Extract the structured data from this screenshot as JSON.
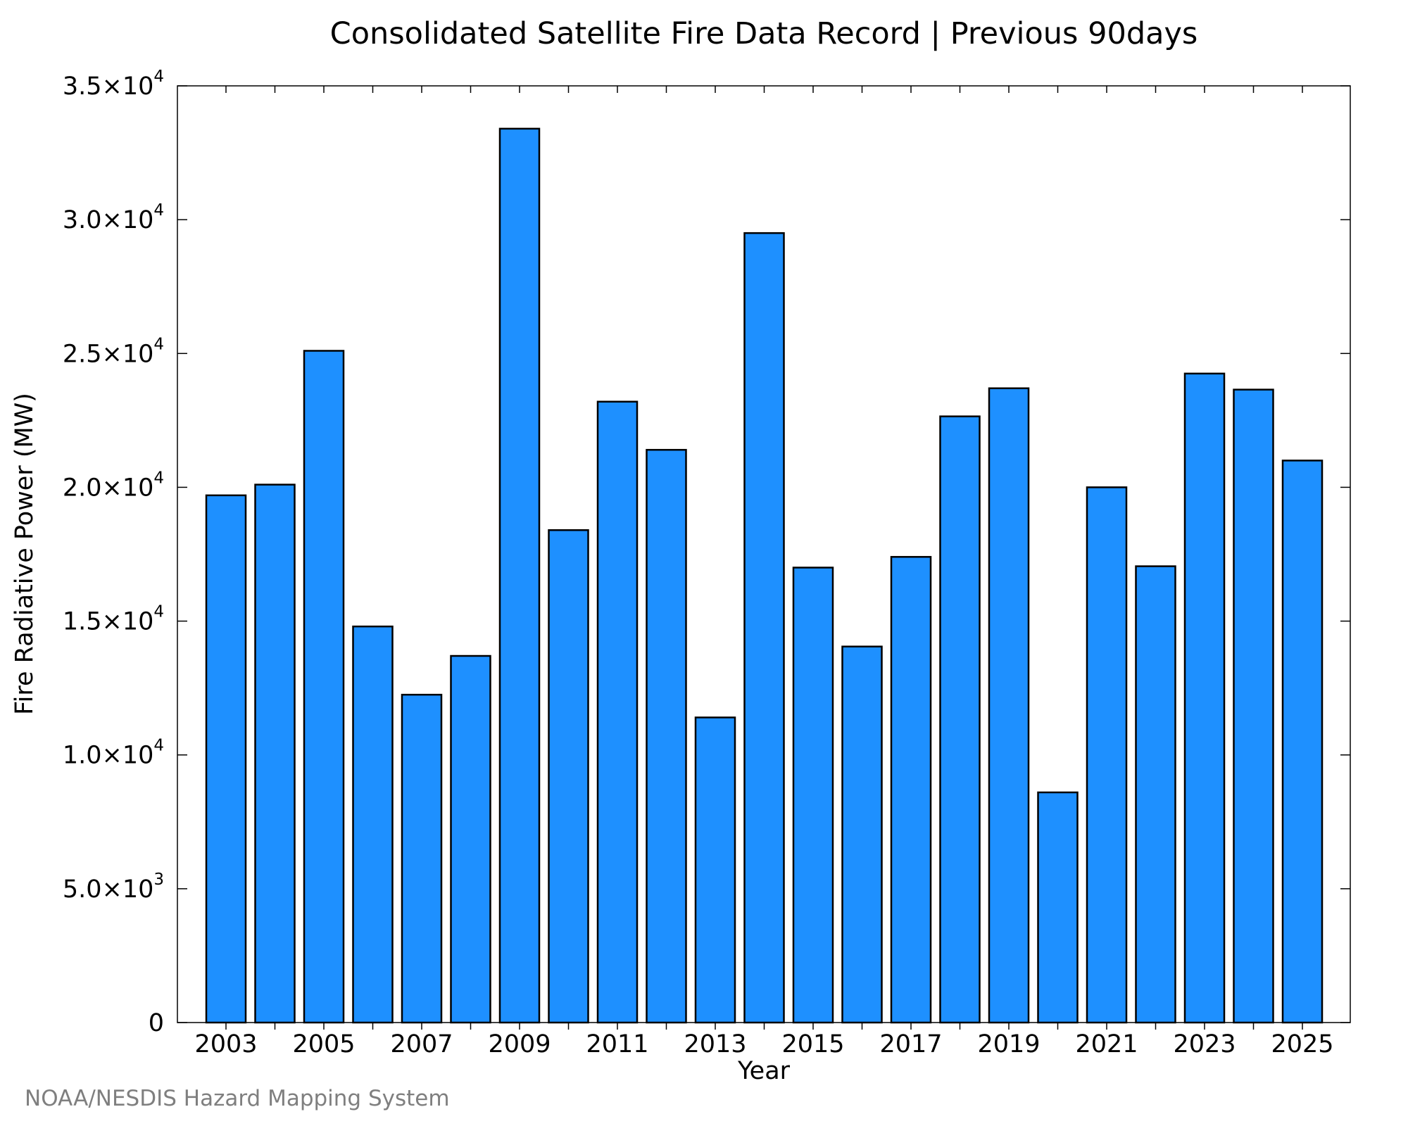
{
  "chart_data": {
    "type": "bar",
    "title": "Consolidated Satellite Fire Data Record | Previous 90days",
    "xlabel": "Year",
    "ylabel": "Fire Radiative Power (MW)",
    "categories": [
      "2003",
      "2004",
      "2005",
      "2006",
      "2007",
      "2008",
      "2009",
      "2010",
      "2011",
      "2012",
      "2013",
      "2014",
      "2015",
      "2016",
      "2017",
      "2018",
      "2019",
      "2020",
      "2021",
      "2022",
      "2023",
      "2024",
      "2025"
    ],
    "values": [
      19700,
      20100,
      25100,
      14800,
      12250,
      13700,
      33400,
      18400,
      23200,
      21400,
      11400,
      29500,
      17000,
      14050,
      17400,
      22650,
      23700,
      8600,
      20000,
      17050,
      24250,
      23650,
      21000
    ],
    "x_tick_labels": [
      "2003",
      "2005",
      "2007",
      "2009",
      "2011",
      "2013",
      "2015",
      "2017",
      "2019",
      "2021",
      "2023",
      "2025"
    ],
    "y_ticks": [
      {
        "value": 0,
        "mantissa": "0",
        "exponent": ""
      },
      {
        "value": 5000,
        "mantissa": "5.0×10",
        "exponent": "3"
      },
      {
        "value": 10000,
        "mantissa": "1.0×10",
        "exponent": "4"
      },
      {
        "value": 15000,
        "mantissa": "1.5×10",
        "exponent": "4"
      },
      {
        "value": 20000,
        "mantissa": "2.0×10",
        "exponent": "4"
      },
      {
        "value": 25000,
        "mantissa": "2.5×10",
        "exponent": "4"
      },
      {
        "value": 30000,
        "mantissa": "3.0×10",
        "exponent": "4"
      },
      {
        "value": 35000,
        "mantissa": "3.5×10",
        "exponent": "4"
      }
    ],
    "ylim": [
      0,
      35000
    ],
    "grid": false,
    "bar_color": "#1e90ff",
    "bar_edge_color": "#000000"
  },
  "credit": "NOAA/NESDIS Hazard Mapping System"
}
